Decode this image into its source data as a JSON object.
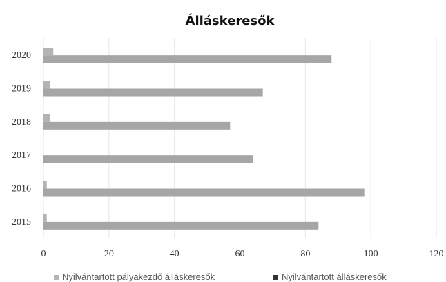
{
  "chart_data": {
    "type": "bar",
    "orientation": "horizontal",
    "title": "Álláskeresők",
    "categories": [
      "2015",
      "2016",
      "2017",
      "2018",
      "2019",
      "2020"
    ],
    "series": [
      {
        "name": "Nyilvántartott pályakezdő álláskeresők",
        "values": [
          1,
          1,
          0,
          2,
          2,
          3
        ],
        "color": "#b4b4b4"
      },
      {
        "name": "Nyilvántartott álláskeresők",
        "values": [
          84,
          98,
          64,
          57,
          67,
          88
        ],
        "color": "#a6a6a6"
      }
    ],
    "x_ticks": [
      "0",
      "20",
      "40",
      "60",
      "80",
      "100",
      "120"
    ],
    "xlim": [
      0,
      120
    ],
    "grid": true,
    "legend_position": "bottom"
  }
}
